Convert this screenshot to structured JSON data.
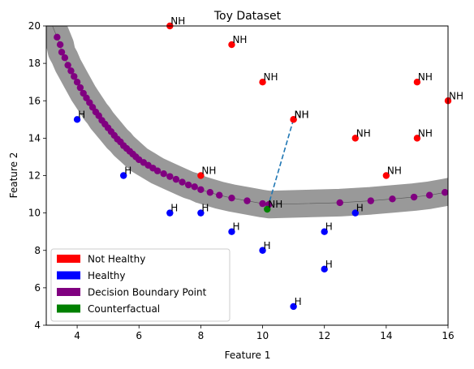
{
  "chart_data": {
    "type": "scatter",
    "title": "Toy Dataset",
    "xlabel": "Feature 1",
    "ylabel": "Feature 2",
    "xlim": [
      3,
      16
    ],
    "ylim": [
      4,
      20
    ],
    "xticks": [
      4,
      6,
      8,
      10,
      12,
      14,
      16
    ],
    "yticks": [
      4,
      6,
      8,
      10,
      12,
      14,
      16,
      18,
      20
    ],
    "grid": false,
    "legend_position": "lower-left",
    "colors": {
      "not_healthy": "#ff0000",
      "healthy": "#0000ff",
      "boundary": "#800080",
      "counterfactual": "#008000",
      "band": "#999999",
      "connector": "#1f77b4"
    },
    "legend": [
      {
        "label": "Not Healthy",
        "color": "#ff0000"
      },
      {
        "label": "Healthy",
        "color": "#0000ff"
      },
      {
        "label": "Decision Boundary Point",
        "color": "#800080"
      },
      {
        "label": "Counterfactual",
        "color": "#008000"
      }
    ],
    "not_healthy": {
      "label": "NH",
      "points": [
        [
          7,
          20
        ],
        [
          9,
          19
        ],
        [
          10,
          17
        ],
        [
          11,
          15
        ],
        [
          11,
          15
        ],
        [
          13,
          14
        ],
        [
          15,
          17
        ],
        [
          15,
          14
        ],
        [
          16,
          16
        ],
        [
          8,
          12
        ],
        [
          14,
          12
        ]
      ]
    },
    "healthy": {
      "label": "H",
      "points": [
        [
          4,
          15
        ],
        [
          5.5,
          12
        ],
        [
          7,
          10
        ],
        [
          8,
          10
        ],
        [
          9,
          9
        ],
        [
          10,
          8
        ],
        [
          11,
          5
        ],
        [
          12,
          9
        ],
        [
          12,
          7
        ],
        [
          13,
          10
        ]
      ]
    },
    "boundary_points": [
      [
        3.35,
        19.4
      ],
      [
        3.45,
        19.0
      ],
      [
        3.5,
        18.6
      ],
      [
        3.6,
        18.3
      ],
      [
        3.7,
        17.9
      ],
      [
        3.8,
        17.6
      ],
      [
        3.9,
        17.3
      ],
      [
        4.0,
        17.0
      ],
      [
        4.1,
        16.7
      ],
      [
        4.2,
        16.4
      ],
      [
        4.3,
        16.15
      ],
      [
        4.4,
        15.9
      ],
      [
        4.5,
        15.65
      ],
      [
        4.6,
        15.4
      ],
      [
        4.7,
        15.2
      ],
      [
        4.8,
        14.95
      ],
      [
        4.9,
        14.75
      ],
      [
        5.0,
        14.55
      ],
      [
        5.1,
        14.35
      ],
      [
        5.2,
        14.15
      ],
      [
        5.3,
        13.95
      ],
      [
        5.4,
        13.8
      ],
      [
        5.5,
        13.6
      ],
      [
        5.6,
        13.45
      ],
      [
        5.7,
        13.3
      ],
      [
        5.8,
        13.15
      ],
      [
        5.9,
        13.0
      ],
      [
        6.0,
        12.85
      ],
      [
        6.15,
        12.7
      ],
      [
        6.3,
        12.55
      ],
      [
        6.45,
        12.4
      ],
      [
        6.6,
        12.25
      ],
      [
        6.8,
        12.1
      ],
      [
        7.0,
        11.95
      ],
      [
        7.2,
        11.8
      ],
      [
        7.4,
        11.65
      ],
      [
        7.6,
        11.5
      ],
      [
        7.8,
        11.4
      ],
      [
        8.0,
        11.25
      ],
      [
        8.3,
        11.1
      ],
      [
        8.6,
        10.95
      ],
      [
        9.0,
        10.8
      ],
      [
        9.5,
        10.65
      ],
      [
        10.0,
        10.5
      ],
      [
        10.2,
        10.45
      ],
      [
        12.5,
        10.55
      ],
      [
        13.5,
        10.65
      ],
      [
        14.2,
        10.75
      ],
      [
        14.9,
        10.85
      ],
      [
        15.4,
        10.95
      ],
      [
        15.9,
        11.1
      ]
    ],
    "counterfactual": {
      "label": "NH",
      "point": [
        10.15,
        10.2
      ]
    },
    "connector": {
      "from": [
        11,
        15
      ],
      "to": [
        10.15,
        10.2
      ],
      "style": "dashed"
    }
  }
}
